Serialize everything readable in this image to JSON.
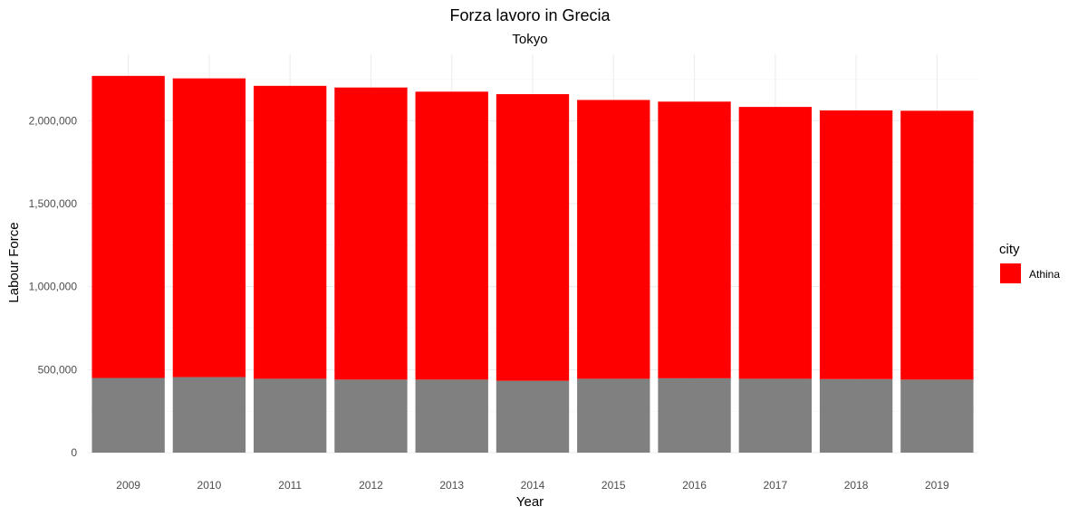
{
  "chart_data": {
    "type": "bar",
    "title": "Forza lavoro in Grecia",
    "subtitle": "Tokyo",
    "xlabel": "Year",
    "ylabel": "Labour Force",
    "categories": [
      "2009",
      "2010",
      "2011",
      "2012",
      "2013",
      "2014",
      "2015",
      "2016",
      "2017",
      "2018",
      "2019"
    ],
    "total_values": [
      2270000,
      2255000,
      2210000,
      2200000,
      2175000,
      2160000,
      2125000,
      2115000,
      2083000,
      2062000,
      2060000
    ],
    "series": [
      {
        "values": [
          450000,
          455000,
          445000,
          440000,
          440000,
          433000,
          445000,
          448000,
          445000,
          443000,
          440000
        ],
        "color": "#808080"
      },
      {
        "name": "Athina",
        "values": [
          1820000,
          1800000,
          1765000,
          1760000,
          1735000,
          1727000,
          1680000,
          1667000,
          1638000,
          1619000,
          1620000
        ],
        "color": "#ff0000"
      }
    ],
    "yticks": [
      0,
      500000,
      1000000,
      1500000,
      2000000
    ],
    "ytick_labels": [
      "0",
      "500,000",
      "1,000,000",
      "1,500,000",
      "2,000,000"
    ],
    "ylim": [
      0,
      2400000
    ],
    "grid": true,
    "legend": {
      "title": "city",
      "position": "right",
      "entries": [
        {
          "label": "Athina",
          "color": "#ff0000"
        }
      ]
    }
  }
}
